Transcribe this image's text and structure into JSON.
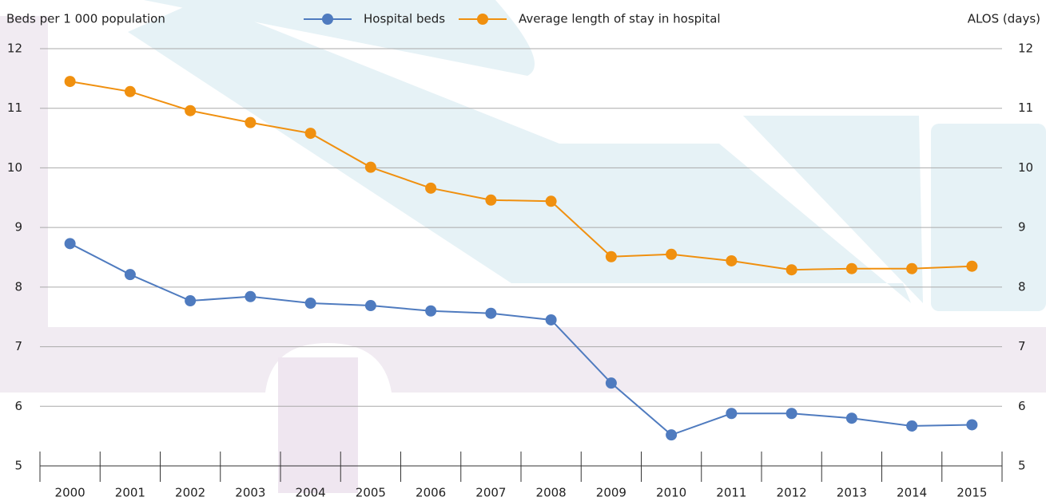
{
  "chart_data": {
    "type": "line",
    "y_label": "Beds per 1 000 population",
    "y2_label": "ALOS (days)",
    "categories": [
      "2000",
      "2001",
      "2002",
      "2003",
      "2004",
      "2005",
      "2006",
      "2007",
      "2008",
      "2009",
      "2010",
      "2011",
      "2012",
      "2013",
      "2014",
      "2015"
    ],
    "series": [
      {
        "name": "Hospital beds",
        "color": "#4f7bbf",
        "values": [
          8.73,
          8.21,
          7.77,
          7.84,
          7.73,
          7.69,
          7.6,
          7.56,
          7.45,
          6.39,
          5.52,
          5.88,
          5.88,
          5.8,
          5.67,
          5.69
        ]
      },
      {
        "name": "Average length of stay in hospital",
        "color": "#f0900f",
        "axis": "y2",
        "values": [
          11.45,
          11.28,
          10.96,
          10.76,
          10.58,
          10.01,
          9.66,
          9.46,
          9.44,
          8.51,
          8.55,
          8.44,
          8.29,
          8.31,
          8.31,
          8.35
        ]
      }
    ],
    "ylim": [
      5,
      12
    ],
    "yticks": [
      5,
      6,
      7,
      8,
      9,
      10,
      11,
      12
    ],
    "y2lim": [
      5,
      12
    ],
    "y2ticks": [
      5,
      6,
      7,
      8,
      9,
      10,
      11,
      12
    ],
    "grid": true,
    "legend": "top"
  }
}
